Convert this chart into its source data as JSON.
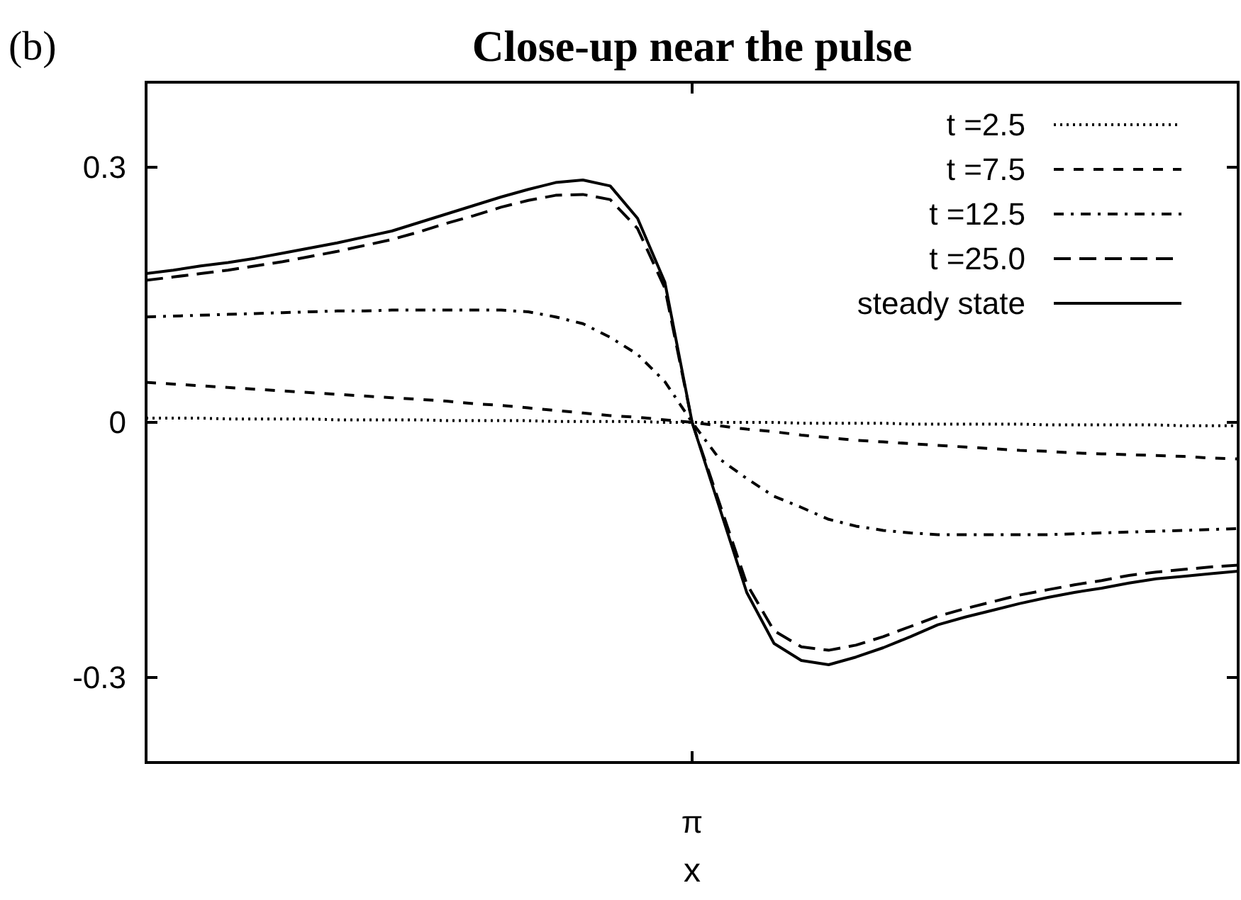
{
  "chart_data": {
    "type": "line",
    "title": "Close-up near the pulse",
    "xlabel": "x",
    "annotations": [
      "(b)"
    ],
    "categories": [
      null,
      null,
      null,
      null,
      null,
      null,
      null,
      null,
      null,
      null,
      null,
      null,
      null,
      null,
      null,
      null,
      null,
      null,
      null,
      null,
      "π",
      null,
      null,
      null,
      null,
      null,
      null,
      null,
      null,
      null,
      null,
      null,
      null,
      null,
      null,
      null,
      null,
      null,
      null,
      null,
      null
    ],
    "ylim": [
      -0.4,
      0.4
    ],
    "yticks": [
      -0.3,
      0,
      0.3
    ],
    "legend": "top right",
    "series": [
      {
        "name": "t =2.5",
        "color": "#000000",
        "line_style": "dotted",
        "values": [
          0.005,
          0.005,
          0.005,
          0.004,
          0.004,
          0.004,
          0.004,
          0.003,
          0.003,
          0.003,
          0.003,
          0.002,
          0.002,
          0.002,
          0.002,
          0.001,
          0.001,
          0.001,
          0.001,
          0,
          0,
          0,
          0,
          0,
          -0.001,
          -0.001,
          -0.001,
          -0.001,
          -0.002,
          -0.002,
          -0.002,
          -0.002,
          -0.002,
          -0.003,
          -0.003,
          -0.003,
          -0.003,
          -0.003,
          -0.004,
          -0.004,
          -0.004
        ]
      },
      {
        "name": "t =7.5",
        "color": "#000000",
        "line_style": "dashed",
        "values": [
          0.047,
          0.045,
          0.043,
          0.041,
          0.039,
          0.037,
          0.035,
          0.033,
          0.031,
          0.029,
          0.027,
          0.025,
          0.022,
          0.02,
          0.017,
          0.014,
          0.011,
          0.008,
          0.006,
          0.003,
          0,
          -0.004,
          -0.008,
          -0.011,
          -0.015,
          -0.018,
          -0.021,
          -0.023,
          -0.025,
          -0.027,
          -0.029,
          -0.031,
          -0.033,
          -0.034,
          -0.036,
          -0.037,
          -0.038,
          -0.039,
          -0.04,
          -0.042,
          -0.043
        ]
      },
      {
        "name": "t =12.5",
        "color": "#000000",
        "line_style": "dashdot",
        "values": [
          0.124,
          0.125,
          0.126,
          0.127,
          0.128,
          0.129,
          0.13,
          0.131,
          0.131,
          0.132,
          0.132,
          0.132,
          0.132,
          0.132,
          0.13,
          0.124,
          0.116,
          0.1,
          0.08,
          0.048,
          0,
          -0.043,
          -0.066,
          -0.087,
          -0.1,
          -0.114,
          -0.122,
          -0.127,
          -0.13,
          -0.132,
          -0.132,
          -0.132,
          -0.132,
          -0.132,
          -0.131,
          -0.13,
          -0.129,
          -0.128,
          -0.127,
          -0.126,
          -0.125
        ]
      },
      {
        "name": "t =25.0",
        "color": "#000000",
        "line_style": "longdash",
        "values": [
          0.167,
          0.171,
          0.175,
          0.179,
          0.184,
          0.189,
          0.195,
          0.201,
          0.208,
          0.215,
          0.224,
          0.234,
          0.243,
          0.253,
          0.261,
          0.267,
          0.268,
          0.262,
          0.228,
          0.158,
          0,
          -0.095,
          -0.19,
          -0.245,
          -0.264,
          -0.268,
          -0.262,
          -0.252,
          -0.24,
          -0.228,
          -0.219,
          -0.211,
          -0.203,
          -0.197,
          -0.191,
          -0.186,
          -0.18,
          -0.176,
          -0.173,
          -0.17,
          -0.168
        ]
      },
      {
        "name": "steady state",
        "color": "#000000",
        "line_style": "solid",
        "values": [
          0.175,
          0.179,
          0.184,
          0.188,
          0.193,
          0.199,
          0.205,
          0.211,
          0.218,
          0.225,
          0.235,
          0.245,
          0.255,
          0.265,
          0.274,
          0.282,
          0.285,
          0.278,
          0.24,
          0.165,
          0,
          -0.1,
          -0.2,
          -0.26,
          -0.28,
          -0.285,
          -0.276,
          -0.265,
          -0.252,
          -0.238,
          -0.229,
          -0.221,
          -0.213,
          -0.206,
          -0.2,
          -0.195,
          -0.189,
          -0.184,
          -0.181,
          -0.178,
          -0.175
        ]
      }
    ]
  }
}
